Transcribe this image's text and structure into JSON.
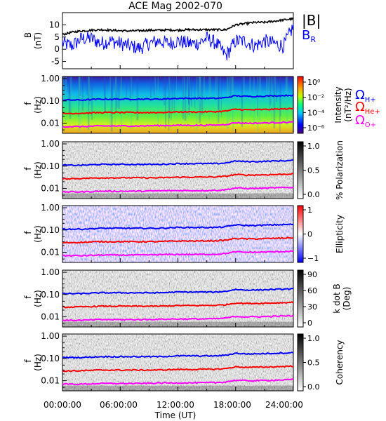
{
  "title": "ACE Mag 2002-070",
  "xaxis": {
    "label": "Time (UT)",
    "ticks": [
      "00:00:00",
      "06:00:00",
      "12:00:00",
      "18:00:00",
      "24:00:00"
    ],
    "range_hours": [
      0,
      24
    ]
  },
  "colors": {
    "B_total": "#000000",
    "B_R": "#0000ff",
    "Omega_H": "#0000ff",
    "Omega_He": "#ff0000",
    "Omega_O": "#ff00ff"
  },
  "chart_data": [
    {
      "type": "line",
      "panel": "magnetic-field",
      "ylabel": "B (nT)",
      "ylim": [
        -8,
        15
      ],
      "yticks": [
        "10",
        "5",
        "0",
        "-5"
      ],
      "legend": [
        "|B|",
        "B_R"
      ],
      "series": [
        {
          "name": "|B|",
          "x": [
            0,
            1,
            2,
            3,
            4,
            5,
            6,
            7,
            8,
            9,
            10,
            11,
            12,
            13,
            14,
            15,
            16,
            17,
            18,
            19,
            20,
            21,
            22,
            23,
            24
          ],
          "values": [
            6,
            7,
            7.5,
            7.8,
            8,
            7.8,
            7.6,
            7.5,
            7.6,
            7.8,
            7.8,
            7.9,
            7.8,
            8,
            8,
            8,
            8,
            8,
            10,
            10.5,
            11,
            11,
            11.5,
            12,
            12.5
          ]
        },
        {
          "name": "B_R",
          "x": [
            0,
            1,
            2,
            3,
            4,
            5,
            6,
            7,
            8,
            9,
            10,
            11,
            12,
            13,
            14,
            15,
            16,
            17,
            18,
            19,
            20,
            21,
            22,
            23,
            24
          ],
          "values": [
            3,
            2,
            5,
            5,
            3,
            4,
            3,
            2,
            1,
            3,
            4,
            3,
            4,
            3,
            3,
            5,
            3,
            -2,
            4,
            4,
            2,
            4,
            3,
            2,
            10
          ]
        }
      ]
    },
    {
      "type": "heatmap",
      "panel": "intensity",
      "ylabel": "f (Hz)",
      "yscale": "log",
      "yticks": [
        "1.00",
        "0.10",
        "0.01"
      ],
      "colorbar": {
        "label": "Intensity (nT²/Hz)",
        "ticks": [
          "10⁰",
          "10⁻²",
          "10⁻⁴",
          "10⁻⁶"
        ],
        "palette": "rainbow"
      },
      "legend": [
        "Ω_H+",
        "Ω_He+",
        "Ω_O+"
      ]
    },
    {
      "type": "heatmap",
      "panel": "polarization",
      "ylabel": "f (Hz)",
      "yscale": "log",
      "yticks": [
        "1.00",
        "0.10",
        "0.01"
      ],
      "colorbar": {
        "label": "% Polarization",
        "ticks": [
          "1.0",
          "0.5",
          "0.0"
        ],
        "palette": "gray"
      }
    },
    {
      "type": "heatmap",
      "panel": "ellipticity",
      "ylabel": "f (Hz)",
      "yscale": "log",
      "yticks": [
        "1.00",
        "0.10",
        "0.01"
      ],
      "colorbar": {
        "label": "Ellipticity",
        "ticks": [
          "1",
          "0",
          "−1"
        ],
        "palette": "blue-white-red"
      }
    },
    {
      "type": "heatmap",
      "panel": "kdotb",
      "ylabel": "f (Hz)",
      "yscale": "log",
      "yticks": [
        "1.00",
        "0.10",
        "0.01"
      ],
      "colorbar": {
        "label": "k dot B (Deg)",
        "ticks": [
          "90",
          "60",
          "30",
          "0"
        ],
        "palette": "gray"
      }
    },
    {
      "type": "heatmap",
      "panel": "coherency",
      "ylabel": "f (Hz)",
      "yscale": "log",
      "yticks": [
        "1.00",
        "0.10",
        "0.01"
      ],
      "colorbar": {
        "label": "Coherency",
        "ticks": [
          "1.0",
          "0.5",
          "0.0"
        ],
        "palette": "gray"
      }
    }
  ],
  "gyrofrequency_lines": {
    "x": [
      0,
      2,
      4,
      6,
      8,
      10,
      12,
      14,
      16,
      17,
      18,
      19,
      20,
      22,
      24
    ],
    "H+": [
      0.11,
      0.11,
      0.12,
      0.12,
      0.12,
      0.12,
      0.13,
      0.13,
      0.13,
      0.14,
      0.17,
      0.16,
      0.16,
      0.17,
      0.18
    ],
    "He+": [
      0.027,
      0.028,
      0.03,
      0.03,
      0.03,
      0.03,
      0.032,
      0.032,
      0.033,
      0.035,
      0.042,
      0.04,
      0.04,
      0.042,
      0.045
    ],
    "O+": [
      0.007,
      0.007,
      0.0075,
      0.0075,
      0.0075,
      0.0078,
      0.008,
      0.008,
      0.0082,
      0.0088,
      0.0105,
      0.01,
      0.01,
      0.0105,
      0.0112
    ]
  }
}
